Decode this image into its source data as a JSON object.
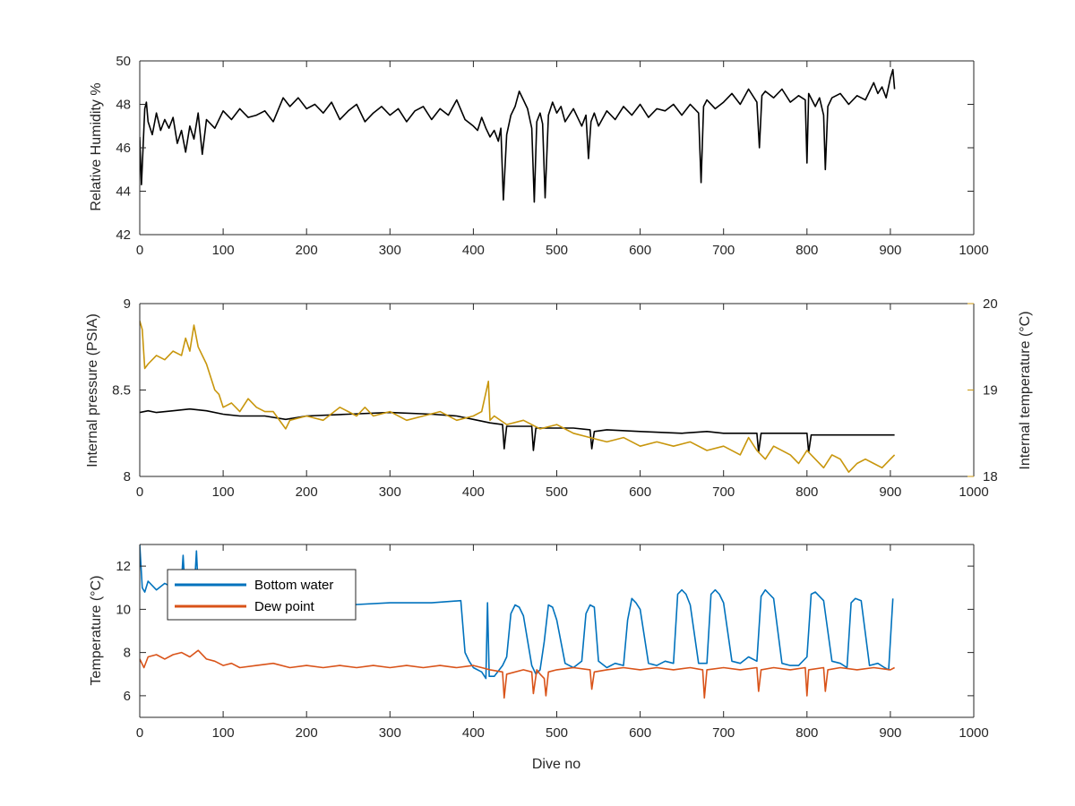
{
  "colors": {
    "black": "#000000",
    "blue": "#0072BD",
    "orange": "#D95319",
    "gold": "#C8960C",
    "axis": "#262626"
  },
  "chart_data": [
    {
      "type": "line",
      "title": "",
      "xlabel": "",
      "ylabel": "Relative Humidity %",
      "xlim": [
        0,
        1000
      ],
      "ylim": [
        42,
        50
      ],
      "xticks": [
        0,
        100,
        200,
        300,
        400,
        500,
        600,
        700,
        800,
        900,
        1000
      ],
      "yticks": [
        42,
        44,
        46,
        48,
        50
      ],
      "grid": false,
      "series": [
        {
          "color": "#000000",
          "x": [
            0,
            2,
            4,
            6,
            8,
            10,
            15,
            20,
            25,
            30,
            35,
            40,
            45,
            50,
            55,
            60,
            65,
            70,
            75,
            80,
            90,
            100,
            110,
            120,
            130,
            140,
            150,
            160,
            172,
            180,
            190,
            200,
            210,
            220,
            230,
            240,
            250,
            260,
            270,
            280,
            290,
            300,
            310,
            320,
            330,
            340,
            350,
            360,
            370,
            380,
            390,
            400,
            405,
            410,
            415,
            420,
            425,
            430,
            433,
            436,
            440,
            445,
            450,
            455,
            460,
            465,
            470,
            473,
            476,
            480,
            483,
            486,
            490,
            495,
            500,
            505,
            510,
            520,
            530,
            535,
            538,
            541,
            545,
            550,
            560,
            570,
            580,
            590,
            600,
            610,
            620,
            630,
            640,
            650,
            660,
            670,
            673,
            676,
            680,
            690,
            700,
            710,
            720,
            730,
            740,
            743,
            746,
            750,
            760,
            770,
            780,
            790,
            798,
            800,
            802,
            810,
            815,
            820,
            822,
            825,
            830,
            840,
            850,
            860,
            870,
            880,
            885,
            890,
            895,
            900,
            903,
            905
          ],
          "y": [
            46.5,
            44.3,
            46.0,
            47.8,
            48.1,
            47.2,
            46.6,
            47.6,
            46.8,
            47.3,
            46.9,
            47.4,
            46.2,
            46.8,
            45.8,
            47.0,
            46.4,
            47.6,
            45.7,
            47.3,
            46.9,
            47.7,
            47.3,
            47.8,
            47.4,
            47.5,
            47.7,
            47.2,
            48.3,
            47.9,
            48.3,
            47.8,
            48.0,
            47.6,
            48.1,
            47.3,
            47.7,
            48.0,
            47.2,
            47.6,
            47.9,
            47.5,
            47.8,
            47.2,
            47.7,
            47.9,
            47.3,
            47.8,
            47.5,
            48.2,
            47.3,
            47.0,
            46.8,
            47.4,
            46.9,
            46.5,
            46.8,
            46.3,
            46.9,
            43.6,
            46.6,
            47.5,
            47.9,
            48.6,
            48.2,
            47.8,
            46.9,
            43.5,
            47.2,
            47.6,
            47.1,
            43.7,
            47.5,
            48.1,
            47.6,
            47.9,
            47.2,
            47.8,
            47.0,
            47.5,
            45.5,
            47.2,
            47.6,
            47.0,
            47.7,
            47.3,
            47.9,
            47.5,
            48.0,
            47.4,
            47.8,
            47.7,
            48.0,
            47.5,
            48.0,
            47.6,
            44.4,
            47.9,
            48.2,
            47.8,
            48.1,
            48.5,
            48.0,
            48.7,
            48.1,
            46.0,
            48.4,
            48.6,
            48.3,
            48.7,
            48.1,
            48.4,
            48.2,
            45.3,
            48.5,
            47.9,
            48.3,
            47.5,
            45.0,
            47.9,
            48.3,
            48.5,
            48.0,
            48.4,
            48.2,
            49.0,
            48.5,
            48.8,
            48.3,
            49.2,
            49.6,
            48.7
          ]
        }
      ]
    },
    {
      "type": "line",
      "title": "",
      "xlabel": "",
      "ylabel": "Internal pressure (PSIA)",
      "ylabel_right": "Internal temperature (°C)",
      "xlim": [
        0,
        1000
      ],
      "ylim": [
        8,
        9
      ],
      "ylim_right": [
        18,
        20
      ],
      "xticks": [
        0,
        100,
        200,
        300,
        400,
        500,
        600,
        700,
        800,
        900,
        1000
      ],
      "yticks": [
        8,
        8.5,
        9
      ],
      "yticks_right": [
        18,
        19,
        20
      ],
      "grid": false,
      "series": [
        {
          "color": "#000000",
          "axis": "left",
          "x": [
            0,
            10,
            20,
            40,
            60,
            80,
            100,
            120,
            150,
            175,
            200,
            250,
            300,
            350,
            380,
            400,
            420,
            435,
            437,
            440,
            460,
            470,
            472,
            475,
            490,
            500,
            520,
            540,
            542,
            545,
            560,
            600,
            650,
            680,
            700,
            740,
            742,
            745,
            780,
            800,
            802,
            805,
            840,
            880,
            905
          ],
          "y": [
            8.37,
            8.38,
            8.37,
            8.38,
            8.39,
            8.38,
            8.36,
            8.35,
            8.35,
            8.33,
            8.35,
            8.36,
            8.37,
            8.36,
            8.35,
            8.33,
            8.31,
            8.3,
            8.16,
            8.29,
            8.29,
            8.29,
            8.15,
            8.28,
            8.28,
            8.28,
            8.28,
            8.27,
            8.16,
            8.26,
            8.27,
            8.26,
            8.25,
            8.26,
            8.25,
            8.25,
            8.14,
            8.25,
            8.25,
            8.25,
            8.14,
            8.24,
            8.24,
            8.24,
            8.24
          ]
        },
        {
          "color": "#C8960C",
          "axis": "right",
          "x": [
            0,
            3,
            6,
            10,
            20,
            30,
            40,
            50,
            55,
            60,
            65,
            70,
            80,
            90,
            95,
            100,
            110,
            120,
            130,
            140,
            150,
            160,
            175,
            180,
            200,
            220,
            240,
            250,
            260,
            270,
            280,
            300,
            320,
            340,
            360,
            380,
            400,
            410,
            418,
            420,
            425,
            440,
            460,
            480,
            500,
            520,
            540,
            560,
            580,
            600,
            620,
            640,
            660,
            680,
            700,
            720,
            730,
            740,
            750,
            760,
            780,
            790,
            800,
            810,
            820,
            830,
            840,
            850,
            860,
            870,
            880,
            890,
            900,
            905
          ],
          "y": [
            19.8,
            19.7,
            19.25,
            19.3,
            19.4,
            19.35,
            19.45,
            19.4,
            19.6,
            19.45,
            19.75,
            19.5,
            19.3,
            19.0,
            18.95,
            18.8,
            18.85,
            18.75,
            18.9,
            18.8,
            18.75,
            18.75,
            18.55,
            18.65,
            18.7,
            18.65,
            18.8,
            18.75,
            18.7,
            18.8,
            18.7,
            18.75,
            18.65,
            18.7,
            18.75,
            18.65,
            18.7,
            18.75,
            19.1,
            18.65,
            18.7,
            18.6,
            18.65,
            18.55,
            18.6,
            18.5,
            18.45,
            18.4,
            18.45,
            18.35,
            18.4,
            18.35,
            18.4,
            18.3,
            18.35,
            18.25,
            18.45,
            18.3,
            18.2,
            18.35,
            18.25,
            18.15,
            18.3,
            18.2,
            18.1,
            18.25,
            18.2,
            18.05,
            18.15,
            18.2,
            18.15,
            18.1,
            18.2,
            18.25
          ]
        }
      ]
    },
    {
      "type": "line",
      "title": "",
      "xlabel": "Dive no",
      "ylabel": "Temperature (°C)",
      "xlim": [
        0,
        1000
      ],
      "ylim": [
        5,
        13
      ],
      "xticks": [
        0,
        100,
        200,
        300,
        400,
        500,
        600,
        700,
        800,
        900,
        1000
      ],
      "yticks": [
        6,
        8,
        10,
        12
      ],
      "grid": false,
      "legend": "top-left",
      "series": [
        {
          "name": "Bottom water",
          "color": "#0072BD",
          "x": [
            0,
            3,
            6,
            10,
            20,
            30,
            40,
            50,
            52,
            54,
            60,
            66,
            68,
            70,
            80,
            100,
            150,
            200,
            250,
            300,
            350,
            385,
            390,
            395,
            400,
            410,
            415,
            417,
            419,
            425,
            435,
            440,
            445,
            450,
            455,
            460,
            470,
            475,
            480,
            485,
            490,
            495,
            500,
            510,
            520,
            530,
            535,
            540,
            545,
            550,
            560,
            570,
            580,
            585,
            590,
            595,
            600,
            610,
            620,
            630,
            640,
            645,
            650,
            655,
            660,
            670,
            680,
            685,
            690,
            695,
            700,
            710,
            720,
            730,
            740,
            745,
            750,
            755,
            760,
            770,
            780,
            790,
            800,
            805,
            810,
            815,
            820,
            830,
            840,
            848,
            853,
            858,
            865,
            875,
            885,
            893,
            898,
            903
          ],
          "y": [
            13.0,
            11.0,
            10.8,
            11.3,
            10.9,
            11.2,
            11.0,
            11.3,
            12.5,
            11.1,
            11.5,
            11.3,
            12.7,
            11.0,
            10.4,
            10.3,
            10.2,
            10.2,
            10.2,
            10.3,
            10.3,
            10.4,
            8.0,
            7.6,
            7.3,
            7.1,
            6.8,
            10.3,
            6.9,
            6.9,
            7.4,
            7.8,
            9.8,
            10.2,
            10.1,
            9.7,
            7.4,
            7.0,
            7.2,
            8.5,
            10.2,
            10.1,
            9.5,
            7.5,
            7.3,
            7.6,
            9.8,
            10.2,
            10.1,
            7.6,
            7.3,
            7.5,
            7.4,
            9.5,
            10.5,
            10.3,
            10.0,
            7.5,
            7.4,
            7.6,
            7.5,
            10.7,
            10.9,
            10.7,
            10.2,
            7.5,
            7.5,
            10.7,
            10.9,
            10.7,
            10.3,
            7.6,
            7.5,
            7.8,
            7.6,
            10.6,
            10.9,
            10.7,
            10.5,
            7.5,
            7.4,
            7.4,
            7.8,
            10.7,
            10.8,
            10.6,
            10.4,
            7.6,
            7.5,
            7.3,
            10.3,
            10.5,
            10.4,
            7.4,
            7.5,
            7.3,
            7.2,
            10.5
          ]
        },
        {
          "name": "Dew point",
          "color": "#D95319",
          "x": [
            0,
            5,
            10,
            20,
            30,
            40,
            50,
            60,
            70,
            80,
            90,
            100,
            110,
            120,
            140,
            160,
            180,
            200,
            220,
            240,
            260,
            280,
            300,
            320,
            340,
            360,
            380,
            400,
            420,
            435,
            437,
            440,
            460,
            470,
            472,
            476,
            480,
            485,
            487,
            490,
            500,
            520,
            540,
            542,
            545,
            560,
            580,
            600,
            620,
            640,
            660,
            675,
            677,
            680,
            700,
            720,
            740,
            742,
            745,
            760,
            780,
            798,
            800,
            802,
            820,
            822,
            825,
            840,
            860,
            880,
            900,
            905
          ],
          "y": [
            7.7,
            7.3,
            7.8,
            7.9,
            7.7,
            7.9,
            8.0,
            7.8,
            8.1,
            7.7,
            7.6,
            7.4,
            7.5,
            7.3,
            7.4,
            7.5,
            7.3,
            7.4,
            7.3,
            7.4,
            7.3,
            7.4,
            7.3,
            7.4,
            7.3,
            7.4,
            7.3,
            7.4,
            7.2,
            7.1,
            5.9,
            7.0,
            7.2,
            7.1,
            6.1,
            7.2,
            7.0,
            6.8,
            6.0,
            7.1,
            7.2,
            7.3,
            7.2,
            6.3,
            7.1,
            7.2,
            7.3,
            7.2,
            7.3,
            7.2,
            7.3,
            7.2,
            5.9,
            7.2,
            7.3,
            7.2,
            7.3,
            6.2,
            7.2,
            7.3,
            7.2,
            7.3,
            6.0,
            7.2,
            7.3,
            6.2,
            7.2,
            7.3,
            7.2,
            7.3,
            7.2,
            7.3
          ]
        }
      ]
    }
  ]
}
